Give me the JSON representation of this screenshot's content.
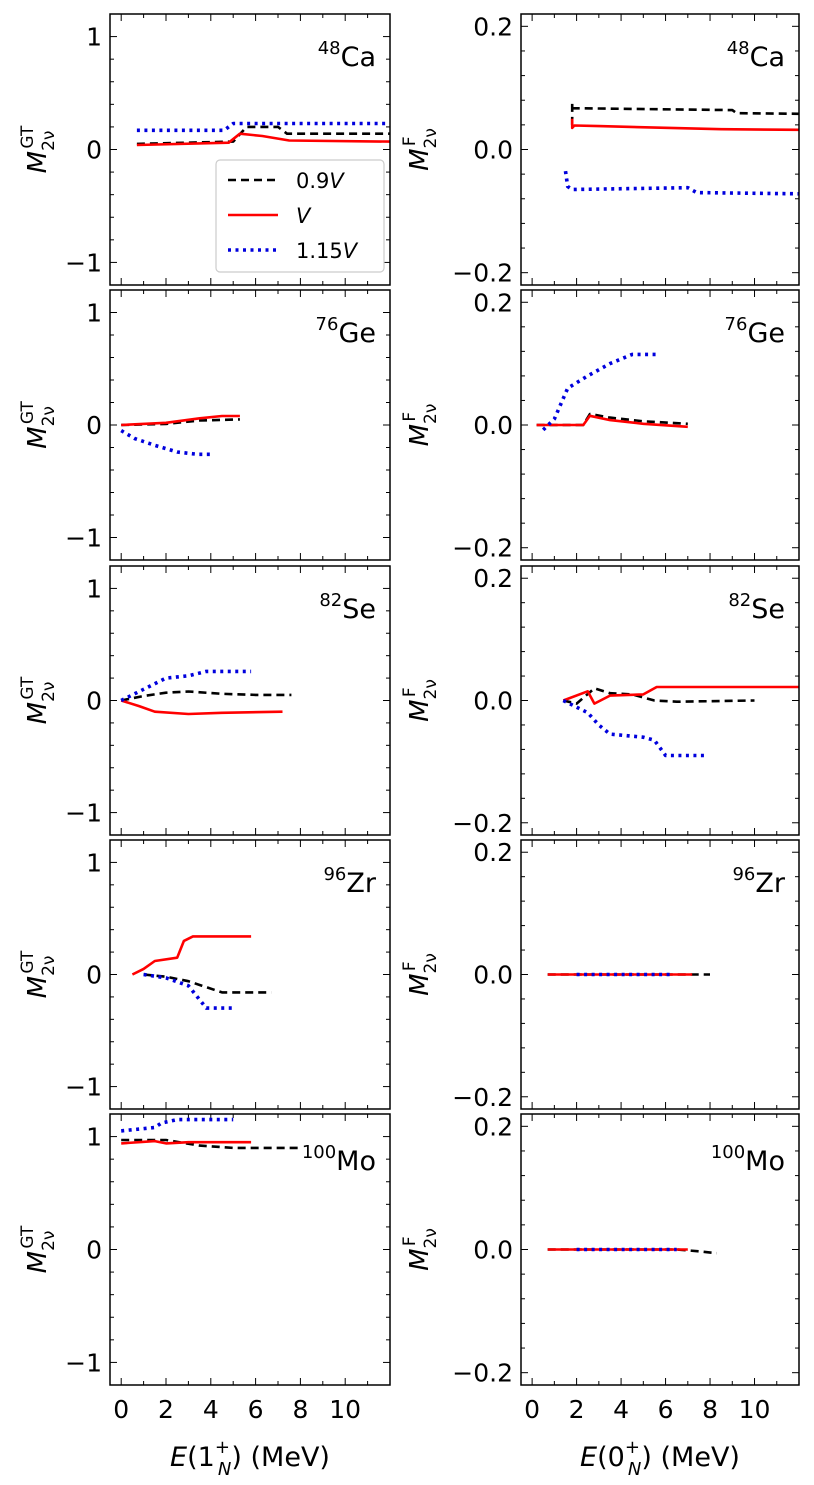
{
  "colors": {
    "series_0": "#000000",
    "series_1": "#ff0000",
    "series_2": "#0000dd"
  },
  "chart_data": [
    {
      "type": "line",
      "panel": "48Ca-GT",
      "column": "GT",
      "label": {
        "mass": "48",
        "element": "Ca"
      },
      "ylabel": "M_2ν^GT",
      "xlim": [
        -0.5,
        12
      ],
      "ylim": [
        -1.2,
        1.2
      ],
      "xticks": [
        0,
        2,
        4,
        6,
        8,
        10
      ],
      "yticks": [
        -1,
        0,
        1
      ],
      "yticklabels": [
        "−1",
        "0",
        "1"
      ],
      "grid": false,
      "legend": {
        "entries": [
          "0.9V",
          "V",
          "1.15V"
        ],
        "position": "center-right"
      },
      "series": [
        {
          "name": "0.9V",
          "style": "dashed",
          "x": [
            0.7,
            5.0,
            5.6,
            7.0,
            7.4,
            12
          ],
          "y": [
            0.05,
            0.07,
            0.2,
            0.2,
            0.14,
            0.14
          ]
        },
        {
          "name": "V",
          "style": "solid",
          "x": [
            0.7,
            4.8,
            5.3,
            6.3,
            7.5,
            12
          ],
          "y": [
            0.04,
            0.06,
            0.14,
            0.12,
            0.08,
            0.07
          ]
        },
        {
          "name": "1.15V",
          "style": "dotted",
          "x": [
            0.7,
            4.6,
            5.0,
            12
          ],
          "y": [
            0.17,
            0.17,
            0.23,
            0.23
          ]
        }
      ]
    },
    {
      "type": "line",
      "panel": "48Ca-F",
      "column": "F",
      "label": {
        "mass": "48",
        "element": "Ca"
      },
      "ylabel": "M_2ν^F",
      "xlim": [
        -0.5,
        12
      ],
      "ylim": [
        -0.22,
        0.22
      ],
      "xticks": [
        0,
        2,
        4,
        6,
        8,
        10
      ],
      "yticks": [
        -0.2,
        0.0,
        0.2
      ],
      "yticklabels": [
        "−0.2",
        "0.0",
        "0.2"
      ],
      "grid": false,
      "series": [
        {
          "name": "0.9V",
          "style": "dashed",
          "x": [
            1.8,
            1.8,
            1.8,
            9.0,
            9.2,
            12
          ],
          "y": [
            0.04,
            0.075,
            0.067,
            0.064,
            0.059,
            0.058
          ]
        },
        {
          "name": "V",
          "style": "solid",
          "x": [
            1.8,
            1.8,
            1.9,
            3.0,
            8.5,
            12
          ],
          "y": [
            0.05,
            0.035,
            0.039,
            0.038,
            0.033,
            0.032
          ]
        },
        {
          "name": "1.15V",
          "style": "dotted",
          "x": [
            1.5,
            1.6,
            1.8,
            7.0,
            7.4,
            12
          ],
          "y": [
            -0.035,
            -0.06,
            -0.065,
            -0.062,
            -0.07,
            -0.072
          ]
        }
      ]
    },
    {
      "type": "line",
      "panel": "76Ge-GT",
      "column": "GT",
      "label": {
        "mass": "76",
        "element": "Ge"
      },
      "ylabel": "M_2ν^GT",
      "xlim": [
        -0.5,
        12
      ],
      "ylim": [
        -1.2,
        1.2
      ],
      "xticks": [
        0,
        2,
        4,
        6,
        8,
        10
      ],
      "yticks": [
        -1,
        0,
        1
      ],
      "yticklabels": [
        "−1",
        "0",
        "1"
      ],
      "grid": false,
      "series": [
        {
          "name": "0.9V",
          "style": "dashed",
          "x": [
            0.0,
            2.0,
            3.5,
            5.3
          ],
          "y": [
            0.0,
            0.01,
            0.04,
            0.05
          ]
        },
        {
          "name": "V",
          "style": "solid",
          "x": [
            0.0,
            2.0,
            3.5,
            4.5,
            5.3
          ],
          "y": [
            0.0,
            0.02,
            0.06,
            0.08,
            0.08
          ]
        },
        {
          "name": "1.15V",
          "style": "dotted",
          "x": [
            0.0,
            0.6,
            1.5,
            2.5,
            3.4,
            4.0
          ],
          "y": [
            -0.05,
            -0.12,
            -0.18,
            -0.24,
            -0.26,
            -0.26
          ]
        }
      ]
    },
    {
      "type": "line",
      "panel": "76Ge-F",
      "column": "F",
      "label": {
        "mass": "76",
        "element": "Ge"
      },
      "ylabel": "M_2ν^F",
      "xlim": [
        -0.5,
        12
      ],
      "ylim": [
        -0.22,
        0.22
      ],
      "xticks": [
        0,
        2,
        4,
        6,
        8,
        10
      ],
      "yticks": [
        -0.2,
        0.0,
        0.2
      ],
      "yticklabels": [
        "−0.2",
        "0.0",
        "0.2"
      ],
      "grid": false,
      "series": [
        {
          "name": "0.9V",
          "style": "dashed",
          "x": [
            0.2,
            2.3,
            2.6,
            3.5,
            5.0,
            7.0
          ],
          "y": [
            0.0,
            0.0,
            0.018,
            0.012,
            0.006,
            0.002
          ]
        },
        {
          "name": "V",
          "style": "solid",
          "x": [
            0.2,
            2.3,
            2.6,
            3.5,
            5.0,
            7.0
          ],
          "y": [
            0.0,
            0.0,
            0.015,
            0.008,
            0.002,
            -0.003
          ]
        },
        {
          "name": "1.15V",
          "style": "dotted",
          "x": [
            0.5,
            1.0,
            1.6,
            2.5,
            3.5,
            4.5,
            5.6
          ],
          "y": [
            -0.008,
            0.01,
            0.06,
            0.08,
            0.1,
            0.115,
            0.115
          ]
        }
      ]
    },
    {
      "type": "line",
      "panel": "82Se-GT",
      "column": "GT",
      "label": {
        "mass": "82",
        "element": "Se"
      },
      "ylabel": "M_2ν^GT",
      "xlim": [
        -0.5,
        12
      ],
      "ylim": [
        -1.2,
        1.2
      ],
      "xticks": [
        0,
        2,
        4,
        6,
        8,
        10
      ],
      "yticks": [
        -1,
        0,
        1
      ],
      "yticklabels": [
        "−1",
        "0",
        "1"
      ],
      "grid": false,
      "series": [
        {
          "name": "0.9V",
          "style": "dashed",
          "x": [
            0.0,
            1.0,
            2.0,
            3.0,
            4.5,
            6.0,
            7.6
          ],
          "y": [
            0.0,
            0.04,
            0.07,
            0.08,
            0.06,
            0.05,
            0.05
          ]
        },
        {
          "name": "V",
          "style": "solid",
          "x": [
            0.0,
            0.8,
            1.5,
            3.0,
            4.5,
            7.2
          ],
          "y": [
            0.0,
            -0.05,
            -0.1,
            -0.12,
            -0.11,
            -0.1
          ]
        },
        {
          "name": "1.15V",
          "style": "dotted",
          "x": [
            0.0,
            1.0,
            2.0,
            3.0,
            3.8,
            5.8
          ],
          "y": [
            0.0,
            0.1,
            0.2,
            0.22,
            0.26,
            0.26
          ]
        }
      ]
    },
    {
      "type": "line",
      "panel": "82Se-F",
      "column": "F",
      "label": {
        "mass": "82",
        "element": "Se"
      },
      "ylabel": "M_2ν^F",
      "xlim": [
        -0.5,
        12
      ],
      "ylim": [
        -0.22,
        0.22
      ],
      "xticks": [
        0,
        2,
        4,
        6,
        8,
        10
      ],
      "yticks": [
        -0.2,
        0.0,
        0.2
      ],
      "yticklabels": [
        "−0.2",
        "0.0",
        "0.2"
      ],
      "grid": false,
      "series": [
        {
          "name": "0.9V",
          "style": "dashed",
          "x": [
            1.4,
            2.0,
            2.8,
            3.5,
            4.5,
            5.5,
            6.5,
            10.0
          ],
          "y": [
            0.0,
            -0.005,
            0.02,
            0.012,
            0.01,
            0.0,
            -0.002,
            0.0
          ]
        },
        {
          "name": "V",
          "style": "solid",
          "x": [
            1.4,
            2.5,
            2.8,
            3.5,
            5.0,
            5.6,
            6.5,
            12
          ],
          "y": [
            0.0,
            0.015,
            -0.005,
            0.008,
            0.01,
            0.022,
            0.022,
            0.022
          ]
        },
        {
          "name": "1.15V",
          "style": "dotted",
          "x": [
            1.4,
            2.5,
            3.0,
            3.5,
            5.0,
            5.5,
            6.0,
            7.8
          ],
          "y": [
            0.0,
            -0.02,
            -0.04,
            -0.055,
            -0.06,
            -0.065,
            -0.09,
            -0.09
          ]
        }
      ]
    },
    {
      "type": "line",
      "panel": "96Zr-GT",
      "column": "GT",
      "label": {
        "mass": "96",
        "element": "Zr"
      },
      "ylabel": "M_2ν^GT",
      "xlim": [
        -0.5,
        12
      ],
      "ylim": [
        -1.2,
        1.2
      ],
      "xticks": [
        0,
        2,
        4,
        6,
        8,
        10
      ],
      "yticks": [
        -1,
        0,
        1
      ],
      "yticklabels": [
        "−1",
        "0",
        "1"
      ],
      "grid": false,
      "series": [
        {
          "name": "0.9V",
          "style": "dashed",
          "x": [
            1.0,
            2.0,
            3.0,
            4.5,
            6.7
          ],
          "y": [
            0.0,
            -0.02,
            -0.06,
            -0.16,
            -0.16
          ]
        },
        {
          "name": "V",
          "style": "solid",
          "x": [
            0.5,
            1.0,
            1.5,
            2.5,
            2.8,
            3.2,
            5.8
          ],
          "y": [
            0.0,
            0.05,
            0.12,
            0.15,
            0.3,
            0.34,
            0.34
          ]
        },
        {
          "name": "1.15V",
          "style": "dotted",
          "x": [
            1.0,
            2.0,
            3.0,
            3.8,
            5.0
          ],
          "y": [
            0.0,
            -0.03,
            -0.1,
            -0.3,
            -0.3
          ]
        }
      ]
    },
    {
      "type": "line",
      "panel": "96Zr-F",
      "column": "F",
      "label": {
        "mass": "96",
        "element": "Zr"
      },
      "ylabel": "M_2ν^F",
      "xlim": [
        -0.5,
        12
      ],
      "ylim": [
        -0.22,
        0.22
      ],
      "xticks": [
        0,
        2,
        4,
        6,
        8,
        10
      ],
      "yticks": [
        -0.2,
        0.0,
        0.2
      ],
      "yticklabels": [
        "−0.2",
        "0.0",
        "0.2"
      ],
      "grid": false,
      "series": [
        {
          "name": "0.9V",
          "style": "dashed",
          "x": [
            0.7,
            8.0
          ],
          "y": [
            0.0,
            0.0
          ]
        },
        {
          "name": "V",
          "style": "solid",
          "x": [
            0.7,
            7.2
          ],
          "y": [
            0.0,
            0.0
          ]
        },
        {
          "name": "1.15V",
          "style": "dotted",
          "x": [
            2.0,
            6.3
          ],
          "y": [
            0.0,
            0.0
          ]
        }
      ]
    },
    {
      "type": "line",
      "panel": "100Mo-GT",
      "column": "GT",
      "label": {
        "mass": "100",
        "element": "Mo"
      },
      "ylabel": "M_2ν^GT",
      "xlim": [
        -0.5,
        12
      ],
      "ylim": [
        -1.2,
        1.2
      ],
      "xticks": [
        0,
        2,
        4,
        6,
        8,
        10
      ],
      "yticks": [
        -1,
        0,
        1
      ],
      "yticklabels": [
        "−1",
        "0",
        "1"
      ],
      "grid": false,
      "xlabel": "E(1_N^+) (MeV)",
      "series": [
        {
          "name": "0.9V",
          "style": "dashed",
          "x": [
            0.0,
            2.0,
            3.5,
            5.0,
            8.0
          ],
          "y": [
            0.97,
            0.97,
            0.92,
            0.9,
            0.9
          ]
        },
        {
          "name": "V",
          "style": "solid",
          "x": [
            0.0,
            1.5,
            2.0,
            3.0,
            5.8
          ],
          "y": [
            0.94,
            0.96,
            0.94,
            0.95,
            0.95
          ]
        },
        {
          "name": "1.15V",
          "style": "dotted",
          "x": [
            0.0,
            1.5,
            1.8,
            2.5,
            5.0
          ],
          "y": [
            1.05,
            1.08,
            1.12,
            1.15,
            1.15
          ]
        }
      ]
    },
    {
      "type": "line",
      "panel": "100Mo-F",
      "column": "F",
      "label": {
        "mass": "100",
        "element": "Mo"
      },
      "ylabel": "M_2ν^F",
      "xlim": [
        -0.5,
        12
      ],
      "ylim": [
        -0.22,
        0.22
      ],
      "xticks": [
        0,
        2,
        4,
        6,
        8,
        10
      ],
      "yticks": [
        -0.2,
        0.0,
        0.2
      ],
      "yticklabels": [
        "−0.2",
        "0.0",
        "0.2"
      ],
      "grid": false,
      "xlabel": "E(0_N^+) (MeV)",
      "series": [
        {
          "name": "0.9V",
          "style": "dashed",
          "x": [
            0.7,
            6.5,
            7.5,
            8.3
          ],
          "y": [
            0.0,
            0.0,
            -0.003,
            -0.006
          ]
        },
        {
          "name": "V",
          "style": "solid",
          "x": [
            0.7,
            7.0
          ],
          "y": [
            0.0,
            0.0
          ]
        },
        {
          "name": "1.15V",
          "style": "dotted",
          "x": [
            2.0,
            6.5
          ],
          "y": [
            0.0,
            0.0
          ]
        }
      ]
    }
  ]
}
